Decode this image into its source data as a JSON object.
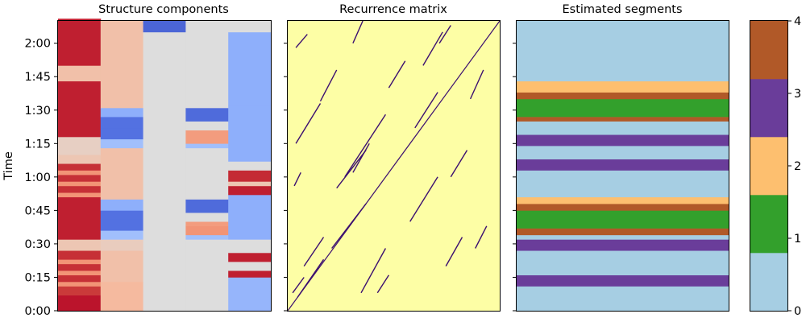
{
  "chart_data": [
    {
      "type": "heatmap",
      "title": "Structure components",
      "ylabel": "Time",
      "y_ticks": [
        "0:00",
        "0:15",
        "0:30",
        "0:45",
        "1:00",
        "1:15",
        "1:30",
        "1:45",
        "2:00"
      ],
      "y_tick_seconds": [
        0,
        15,
        30,
        45,
        60,
        75,
        90,
        105,
        120
      ],
      "ylim": [
        0,
        130
      ],
      "colormap": "coolwarm",
      "columns": [
        {
          "name": "c1",
          "bands": [
            [
              0,
              7,
              0.97
            ],
            [
              7,
              11,
              0.9
            ],
            [
              11,
              13,
              0.72
            ],
            [
              13,
              16,
              0.92
            ],
            [
              16,
              18,
              0.72
            ],
            [
              18,
              21,
              0.92
            ],
            [
              21,
              23,
              0.72
            ],
            [
              23,
              27,
              0.92
            ],
            [
              27,
              32,
              0.58
            ],
            [
              32,
              51,
              0.95
            ],
            [
              51,
              53,
              0.72
            ],
            [
              53,
              56,
              0.92
            ],
            [
              56,
              58,
              0.72
            ],
            [
              58,
              61,
              0.92
            ],
            [
              61,
              63,
              0.72
            ],
            [
              63,
              66,
              0.92
            ],
            [
              66,
              70,
              0.58
            ],
            [
              70,
              78,
              0.55
            ],
            [
              78,
              103,
              0.95
            ],
            [
              103,
              110,
              0.6
            ],
            [
              110,
              130,
              0.95
            ],
            [
              130,
              131,
              0.95
            ]
          ]
        },
        {
          "name": "c2",
          "bands": [
            [
              0,
              13,
              0.62
            ],
            [
              13,
              17,
              0.6
            ],
            [
              17,
              27,
              0.6
            ],
            [
              27,
              32,
              0.56
            ],
            [
              32,
              36,
              0.35
            ],
            [
              36,
              41,
              0.12
            ],
            [
              41,
              45,
              0.12
            ],
            [
              45,
              50,
              0.3
            ],
            [
              50,
              73,
              0.6
            ],
            [
              73,
              77,
              0.35
            ],
            [
              77,
              82,
              0.12
            ],
            [
              82,
              87,
              0.12
            ],
            [
              87,
              91,
              0.3
            ],
            [
              91,
              130,
              0.6
            ]
          ]
        },
        {
          "name": "c3",
          "bands": [
            [
              0,
              125,
              0.5
            ],
            [
              125,
              130,
              0.08
            ]
          ]
        },
        {
          "name": "c4",
          "bands": [
            [
              0,
              32,
              0.5
            ],
            [
              32,
              34,
              0.35
            ],
            [
              34,
              38,
              0.72
            ],
            [
              38,
              40,
              0.7
            ],
            [
              40,
              44,
              0.5
            ],
            [
              44,
              50,
              0.1
            ],
            [
              50,
              73,
              0.5
            ],
            [
              73,
              75,
              0.35
            ],
            [
              75,
              79,
              0.7
            ],
            [
              79,
              81,
              0.7
            ],
            [
              81,
              85,
              0.5
            ],
            [
              85,
              91,
              0.1
            ],
            [
              91,
              130,
              0.5
            ]
          ]
        },
        {
          "name": "c5",
          "bands": [
            [
              0,
              15,
              0.32
            ],
            [
              15,
              18,
              0.95
            ],
            [
              18,
              22,
              0.5
            ],
            [
              22,
              26,
              0.95
            ],
            [
              26,
              32,
              0.5
            ],
            [
              32,
              52,
              0.3
            ],
            [
              52,
              56,
              0.95
            ],
            [
              56,
              58,
              0.58
            ],
            [
              58,
              63,
              0.93
            ],
            [
              63,
              67,
              0.5
            ],
            [
              67,
              92,
              0.3
            ],
            [
              92,
              125,
              0.3
            ],
            [
              125,
              130,
              0.5
            ]
          ]
        }
      ]
    },
    {
      "type": "heatmap",
      "title": "Recurrence matrix",
      "ylim": [
        0,
        130
      ],
      "xlim": [
        0,
        130
      ],
      "background_color": "#FDFEA5",
      "line_color": "#3B0F70",
      "segments": [
        [
          [
            0,
            0
          ],
          [
            130,
            130
          ]
        ],
        [
          [
            6,
            6
          ],
          [
            22,
            23
          ]
        ],
        [
          [
            27,
            28
          ],
          [
            48,
            48
          ]
        ],
        [
          [
            10,
            20
          ],
          [
            22,
            33
          ]
        ],
        [
          [
            30,
            55
          ],
          [
            48,
            72
          ]
        ],
        [
          [
            35,
            60
          ],
          [
            60,
            88
          ]
        ],
        [
          [
            5,
            75
          ],
          [
            20,
            93
          ]
        ],
        [
          [
            45,
            8
          ],
          [
            60,
            28
          ]
        ],
        [
          [
            75,
            40
          ],
          [
            92,
            60
          ]
        ],
        [
          [
            78,
            82
          ],
          [
            92,
            98
          ]
        ],
        [
          [
            62,
            100
          ],
          [
            72,
            112
          ]
        ],
        [
          [
            100,
            60
          ],
          [
            110,
            72
          ]
        ],
        [
          [
            97,
            20
          ],
          [
            107,
            33
          ]
        ],
        [
          [
            40,
            62
          ],
          [
            50,
            75
          ]
        ],
        [
          [
            20,
            94
          ],
          [
            30,
            108
          ]
        ],
        [
          [
            3,
            8
          ],
          [
            10,
            15
          ]
        ],
        [
          [
            4,
            56
          ],
          [
            8,
            62
          ]
        ],
        [
          [
            55,
            8
          ],
          [
            62,
            16
          ]
        ],
        [
          [
            83,
            110
          ],
          [
            95,
            125
          ]
        ],
        [
          [
            115,
            28
          ],
          [
            122,
            38
          ]
        ],
        [
          [
            112,
            95
          ],
          [
            120,
            108
          ]
        ],
        [
          [
            40,
            120
          ],
          [
            46,
            130
          ]
        ],
        [
          [
            93,
            120
          ],
          [
            100,
            128
          ]
        ],
        [
          [
            5,
            118
          ],
          [
            12,
            124
          ]
        ]
      ]
    },
    {
      "type": "bar",
      "title": "Estimated segments",
      "ylim": [
        0,
        130
      ],
      "colorbar_ticks": [
        "0",
        "1",
        "2",
        "3",
        "4"
      ],
      "label_colors": [
        "#A6CEE3",
        "#33A02C",
        "#FDBF6F",
        "#6A3D9A",
        "#B15928"
      ],
      "segments": [
        [
          0,
          11,
          0
        ],
        [
          11,
          16,
          3
        ],
        [
          11,
          11,
          0
        ],
        [
          16,
          27,
          0
        ],
        [
          27,
          32,
          3
        ],
        [
          27,
          27,
          0
        ],
        [
          32,
          34,
          0
        ],
        [
          34,
          37,
          4
        ],
        [
          37,
          45,
          1
        ],
        [
          45,
          48,
          4
        ],
        [
          48,
          51,
          2
        ],
        [
          51,
          63,
          0
        ],
        [
          63,
          68,
          3
        ],
        [
          68,
          74,
          0
        ],
        [
          74,
          79,
          3
        ],
        [
          79,
          85,
          0
        ],
        [
          85,
          87,
          4
        ],
        [
          87,
          95,
          1
        ],
        [
          95,
          98,
          4
        ],
        [
          98,
          103,
          2
        ],
        [
          103,
          130,
          0
        ]
      ]
    }
  ]
}
